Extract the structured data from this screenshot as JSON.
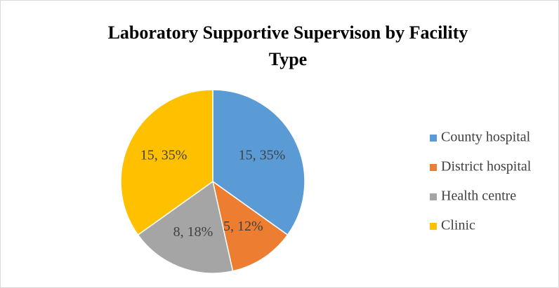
{
  "chart_data": {
    "type": "pie",
    "title": "Laboratory Supportive Supervison by Facility Type",
    "categories": [
      "County hospital",
      "District hospital",
      "Health centre",
      "Clinic"
    ],
    "values": [
      15,
      5,
      8,
      15
    ],
    "value_labels": [
      "15, 35%",
      "5, 12%",
      "8, 18%",
      "15, 35%"
    ],
    "colors": [
      "#5b9bd5",
      "#ed7d31",
      "#a5a5a5",
      "#ffc000"
    ],
    "legend": "right"
  }
}
